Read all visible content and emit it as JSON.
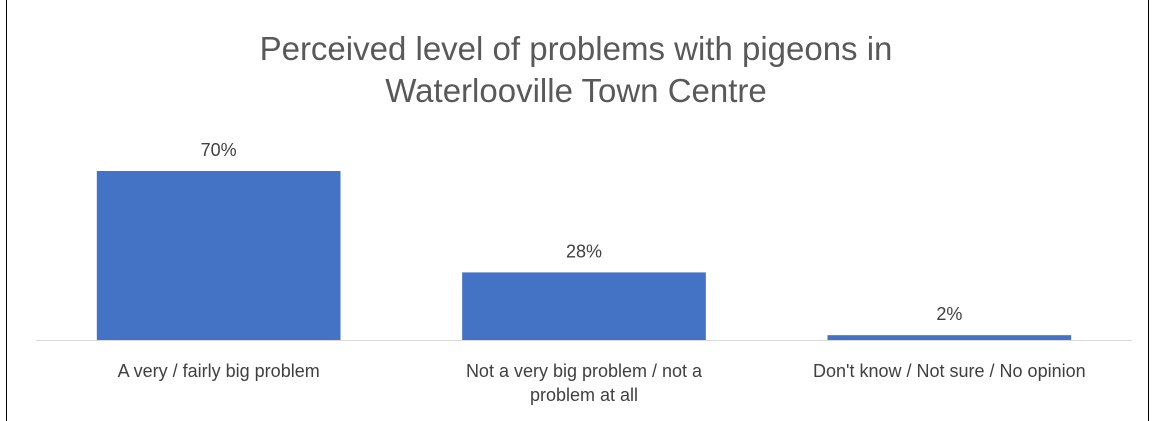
{
  "chart_data": {
    "type": "bar",
    "title_lines": [
      "Perceived level of problems with pigeons in",
      "Waterlooville Town Centre"
    ],
    "categories": [
      [
        "A very / fairly big problem"
      ],
      [
        "Not a very big problem / not a",
        "problem at all"
      ],
      [
        "Don't know / Not sure / No opinion"
      ]
    ],
    "values": [
      70,
      28,
      2
    ],
    "data_labels": [
      "70%",
      "28%",
      "2%"
    ],
    "ylim": [
      0,
      70
    ],
    "grid": false,
    "bar_color": "#4472C4",
    "axis_color": "#D9D9D9",
    "text_color": "#595959"
  }
}
